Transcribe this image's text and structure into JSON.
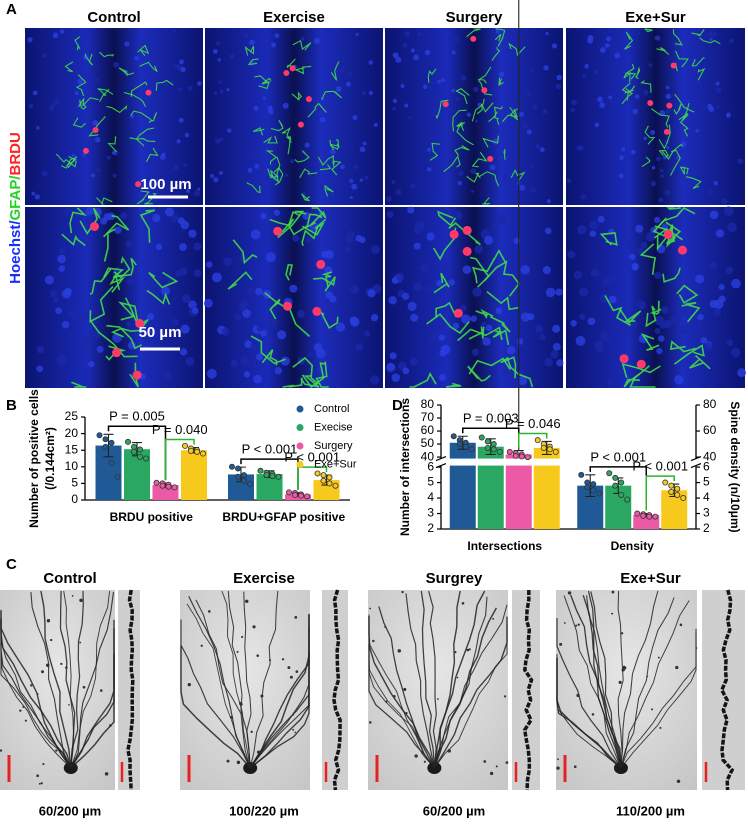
{
  "panel_a": {
    "label": "A",
    "columns": [
      "Control",
      "Exercise",
      "Surgery",
      "Exe+Sur"
    ],
    "stain_label": [
      "Hoechst/",
      "GFAP/",
      "BRDU"
    ],
    "scale_bars": [
      "100 µm",
      "50 µm"
    ]
  },
  "chart_data": [
    {
      "type": "bar",
      "panel": "B",
      "ylabel": [
        "Number of positive cells",
        "(/0.144cm²)"
      ],
      "categories": [
        "BRDU positive",
        "BRDU+GFAP positive"
      ],
      "series": [
        {
          "name": "Control",
          "color": "#1f5a96",
          "values": [
            16.4,
            7.7
          ],
          "errors": [
            3.4,
            2.2
          ],
          "points": [
            [
              19.5,
              18.3,
              17.2,
              16.0,
              11.2,
              7.0
            ],
            [
              10.0,
              9.5,
              7.5,
              7.0,
              5.8,
              4.8
            ]
          ]
        },
        {
          "name": "Execise",
          "color": "#2aa760",
          "values": [
            15.3,
            7.8
          ],
          "errors": [
            2.0,
            1.0
          ],
          "points": [
            [
              17.5,
              16.0,
              15.2,
              14.5,
              13.0,
              12.5
            ],
            [
              8.8,
              8.2,
              7.8,
              7.5,
              7.2,
              7.0
            ]
          ]
        },
        {
          "name": "Surgery",
          "color": "#ec5aa5",
          "values": [
            4.5,
            1.7
          ],
          "errors": [
            0.6,
            0.5
          ],
          "points": [
            [
              5.2,
              5.0,
              4.6,
              4.3,
              4.0,
              3.8
            ],
            [
              2.3,
              2.1,
              1.7,
              1.5,
              1.3,
              1.1
            ]
          ]
        },
        {
          "name": "Exe+Sur",
          "color": "#f7c91c",
          "values": [
            15.0,
            6.0
          ],
          "errors": [
            0.8,
            1.5
          ],
          "points": [
            [
              16.3,
              15.5,
              15.0,
              14.8,
              14.5,
              14.0
            ],
            [
              8.0,
              7.5,
              6.8,
              5.8,
              5.0,
              4.3
            ]
          ]
        }
      ],
      "ylim": [
        0,
        25
      ],
      "yticks": [
        0,
        5,
        10,
        15,
        20,
        25
      ],
      "legend": "upper right",
      "annotations": [
        {
          "text": "P = 0.005",
          "category": 0,
          "between": [
            "Control",
            "Surgery"
          ],
          "color": "#000000"
        },
        {
          "text": "P = 0.040",
          "category": 0,
          "between": [
            "Surgery",
            "Exe+Sur"
          ],
          "color": "#2bb52b"
        },
        {
          "text": "P < 0.001",
          "category": 1,
          "between": [
            "Control",
            "Surgery"
          ],
          "color": "#000000"
        },
        {
          "text": "P < 0.001",
          "category": 1,
          "between": [
            "Surgery",
            "Exe+Sur"
          ],
          "color": "#2bb52b"
        }
      ]
    },
    {
      "type": "bar",
      "panel": "D",
      "ylabel": "Number of intersections",
      "y2label": "Spine density (n/10μm)",
      "categories": [
        "Intersections",
        "Density"
      ],
      "series": [
        {
          "name": "Control",
          "color": "#1f5a96",
          "values": [
            51,
            4.8
          ],
          "errors": [
            5,
            0.7
          ],
          "points": [
            [
              56,
              53,
              51,
              50,
              48,
              46
            ],
            [
              5.5,
              5.0,
              4.9,
              4.7,
              4.5,
              4.3
            ]
          ]
        },
        {
          "name": "Execise",
          "color": "#2aa760",
          "values": [
            48,
            4.8
          ],
          "errors": [
            6,
            0.5
          ],
          "points": [
            [
              55,
              52,
              50,
              47,
              46,
              44
            ],
            [
              5.6,
              5.3,
              5.0,
              4.8,
              4.2,
              3.9
            ]
          ]
        },
        {
          "name": "Surgery",
          "color": "#ec5aa5",
          "values": [
            42,
            2.9
          ],
          "errors": [
            3,
            0.1
          ],
          "points": [
            [
              44,
              43,
              42,
              41,
              40.5,
              40
            ],
            [
              3.0,
              2.95,
              2.9,
              2.85,
              2.8,
              2.8
            ]
          ]
        },
        {
          "name": "Exe+Sur",
          "color": "#f7c91c",
          "values": [
            47,
            4.5
          ],
          "errors": [
            5,
            0.4
          ],
          "points": [
            [
              53,
              50,
              48,
              47,
              46,
              44
            ],
            [
              5.0,
              4.8,
              4.6,
              4.4,
              4.2,
              4.0
            ]
          ]
        }
      ],
      "ylim": [
        2,
        80
      ],
      "ybreak": [
        6,
        40
      ],
      "yticks": [
        2,
        3,
        4,
        5,
        6,
        40,
        50,
        60,
        70,
        80
      ],
      "y2lim": [
        2,
        80
      ],
      "y2ticks": [
        2,
        3,
        4,
        5,
        6,
        40,
        60,
        80
      ],
      "annotations": [
        {
          "text": "P = 0.003",
          "category": 0,
          "between": [
            "Control",
            "Surgery"
          ],
          "color": "#000000"
        },
        {
          "text": "P = 0.046",
          "category": 0,
          "between": [
            "Surgery",
            "Exe+Sur"
          ],
          "color": "#2bb52b"
        },
        {
          "text": "P < 0.001",
          "category": 1,
          "between": [
            "Control",
            "Surgery"
          ],
          "color": "#000000"
        },
        {
          "text": "P < 0.001",
          "category": 1,
          "between": [
            "Surgery",
            "Exe+Sur"
          ],
          "color": "#2bb52b"
        }
      ]
    }
  ],
  "panel_c": {
    "label": "C",
    "columns": [
      {
        "title": "Control",
        "caption": "60/200 µm"
      },
      {
        "title": "Exercise",
        "caption": "100/220 µm"
      },
      {
        "title": "Surgrey",
        "caption": "60/200 µm"
      },
      {
        "title": "Exe+Sur",
        "caption": "110/200 µm"
      }
    ]
  }
}
